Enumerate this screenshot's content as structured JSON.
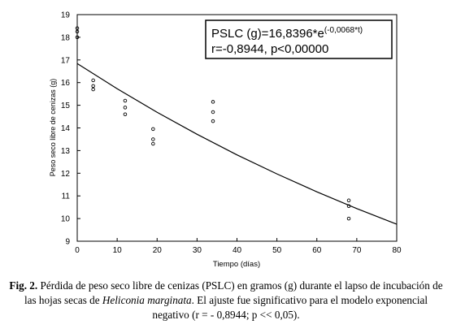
{
  "chart_data": {
    "type": "scatter",
    "x_label": "Tiempo (días)",
    "y_label": "Peso seco libre de cenizas (g)",
    "xlim": [
      0,
      80
    ],
    "ylim": [
      9,
      19
    ],
    "xticks": [
      0,
      10,
      20,
      30,
      40,
      50,
      60,
      70,
      80
    ],
    "yticks": [
      9,
      10,
      11,
      12,
      13,
      14,
      15,
      16,
      17,
      18,
      19
    ],
    "series": [
      {
        "type": "scatter",
        "color": "#000000",
        "marker": "open-circle",
        "x": [
          0,
          0,
          0,
          4,
          4,
          4,
          12,
          12,
          12,
          19,
          19,
          19,
          34,
          34,
          34,
          68,
          68,
          68
        ],
        "values": [
          18.4,
          18.25,
          18.0,
          16.1,
          15.85,
          15.7,
          15.2,
          14.9,
          14.6,
          13.95,
          13.5,
          13.3,
          15.15,
          14.7,
          14.3,
          10.8,
          10.55,
          10.0
        ]
      },
      {
        "type": "line",
        "color": "#000000",
        "x": [
          0,
          10,
          20,
          30,
          40,
          50,
          60,
          70,
          80
        ],
        "values": [
          16.84,
          15.73,
          14.69,
          13.72,
          12.81,
          11.97,
          11.18,
          10.44,
          9.75
        ]
      }
    ],
    "annotation": {
      "line1": "PSLC (g)=16,8396*e",
      "exponent": "(-0,0068*t)",
      "line2": "r=-0,8944, p<0,00000"
    },
    "caption": {
      "label": "Fig. 2.",
      "text_1": " Pérdida de peso seco libre de cenizas (PSLC) en gramos (g) durante el lapso de incubación de las hojas secas de ",
      "italic": "Heliconia marginata",
      "text_2": ". El ajuste fue significativo para el modelo exponencial negativo (r  =  - 0,8944; p << 0,05)."
    }
  }
}
